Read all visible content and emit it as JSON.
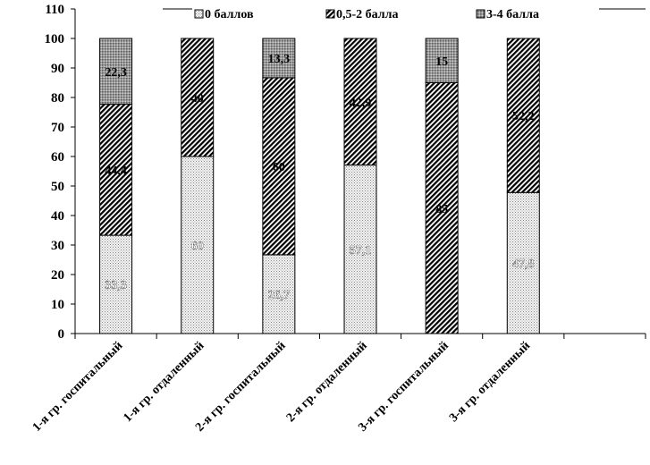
{
  "chart_data": {
    "type": "bar",
    "stacked": true,
    "title": "",
    "xlabel": "",
    "ylabel": "",
    "ylim": [
      0,
      110
    ],
    "ytick_step": 10,
    "grid": false,
    "legend_position": "top",
    "categories": [
      "1-я гр. госпитальный",
      "1-я гр. отдаленный",
      "2-я гр. госпитальный",
      "2-я гр. отдаленный",
      "3-я гр. госпитальный",
      "3-я гр. отдаленный"
    ],
    "series": [
      {
        "name": "0 баллов",
        "values": [
          33.3,
          60,
          26.7,
          57.1,
          0,
          47.8
        ],
        "labels": [
          "33,3",
          "60",
          "26,7",
          "57,1",
          "",
          "47,8"
        ],
        "pattern": "dots",
        "label_color": "#ffffff"
      },
      {
        "name": "0,5-2 балла",
        "values": [
          44.4,
          40,
          60,
          42.9,
          85,
          52.2
        ],
        "labels": [
          "44,4",
          "40",
          "60",
          "42,9",
          "85",
          "52,2"
        ],
        "pattern": "hatch",
        "label_color": "#000000"
      },
      {
        "name": "3-4 балла",
        "values": [
          22.3,
          0,
          13.3,
          0,
          15,
          0
        ],
        "labels": [
          "22,3",
          "",
          "13,3",
          "",
          "15",
          ""
        ],
        "pattern": "dense",
        "label_color": "#000000"
      }
    ]
  }
}
